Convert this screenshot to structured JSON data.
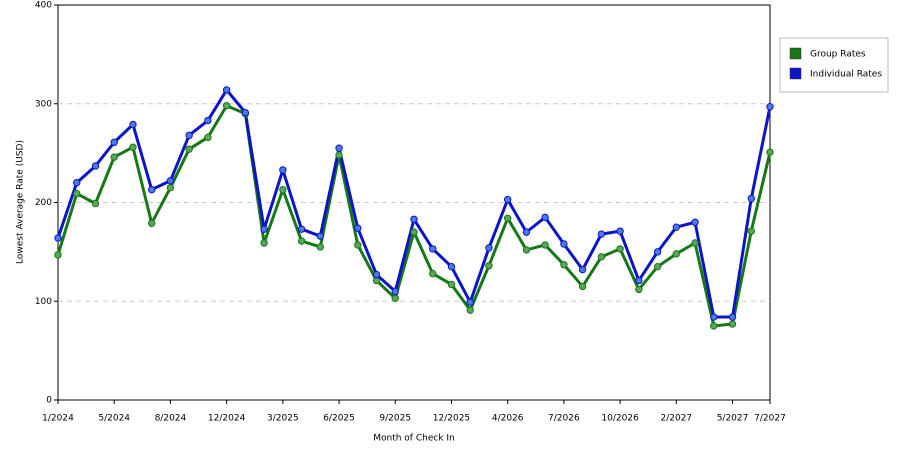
{
  "chart_data": {
    "type": "line",
    "x_label": "Month of Check In",
    "y_label": "Lowest Average Rate (USD)",
    "categories": [
      "1/2024",
      null,
      null,
      "5/2024",
      null,
      null,
      "8/2024",
      null,
      null,
      "12/2024",
      null,
      null,
      "3/2025",
      null,
      null,
      "6/2025",
      null,
      null,
      "9/2025",
      null,
      null,
      "12/2025",
      null,
      null,
      "4/2026",
      null,
      null,
      "7/2026",
      null,
      null,
      "10/2026",
      null,
      null,
      "2/2027",
      null,
      null,
      "5/2027",
      null,
      "7/2027"
    ],
    "series": [
      {
        "name": "Group Rates",
        "color": "#167816",
        "marker_color": "#5aa55a",
        "values": [
          147,
          209,
          199,
          246,
          256,
          179,
          215,
          254,
          266,
          298,
          290,
          159,
          213,
          161,
          155,
          248,
          157,
          121,
          103,
          170,
          128,
          117,
          91,
          136,
          184,
          152,
          157,
          137,
          115,
          145,
          153,
          112,
          135,
          148,
          159,
          75,
          77,
          171,
          251
        ]
      },
      {
        "name": "Individual Rates",
        "color": "#0c14c8",
        "marker_color": "#4a7ce0",
        "values": [
          164,
          220,
          237,
          261,
          279,
          213,
          222,
          268,
          283,
          314,
          291,
          173,
          233,
          173,
          166,
          255,
          174,
          127,
          110,
          183,
          153,
          135,
          99,
          154,
          203,
          170,
          185,
          158,
          132,
          168,
          171,
          121,
          150,
          175,
          180,
          84,
          84,
          204,
          297
        ]
      }
    ],
    "ylim": [
      0,
      400
    ],
    "yticks": [
      0,
      100,
      200,
      300,
      400
    ],
    "grid": true,
    "legend": "right"
  }
}
